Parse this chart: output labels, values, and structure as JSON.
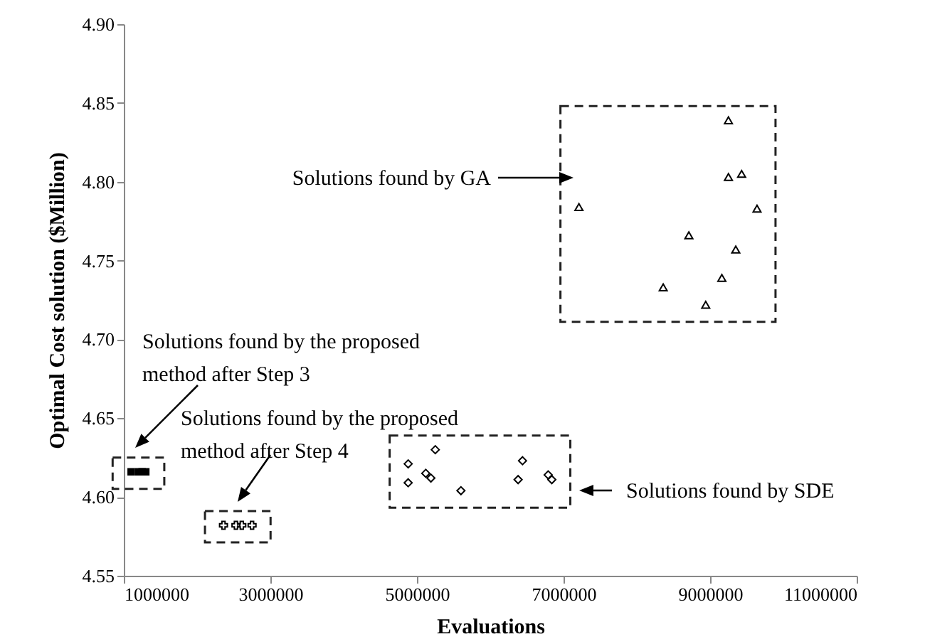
{
  "chart_data": {
    "type": "scatter",
    "xlabel": "Evaluations",
    "ylabel": "Optimal Cost solution ($Million)",
    "xlim": [
      1000000,
      11000000
    ],
    "xticks": [
      1000000,
      3000000,
      5000000,
      7000000,
      9000000,
      11000000
    ],
    "ylim": [
      4.55,
      4.9
    ],
    "yticks": [
      4.55,
      {
        "value": 4.6,
        "label": "4.60"
      },
      4.65,
      {
        "value": 4.7,
        "label": "4.70"
      },
      4.75,
      {
        "value": 4.8,
        "label": "4.80"
      },
      4.85,
      {
        "value": 4.9,
        "label": "4.90"
      }
    ],
    "grid": false,
    "series": [
      {
        "color": "#000000",
        "marker": "triangle",
        "x": [
          7210000,
          9250000,
          9250000,
          9430000,
          9640000,
          8710000,
          9350000,
          9160000,
          8360000,
          8940000
        ],
        "values": [
          4.784,
          4.839,
          4.803,
          4.805,
          4.783,
          4.766,
          4.757,
          4.739,
          4.733,
          4.722
        ]
      },
      {
        "color": "#000000",
        "marker": "diamond",
        "x": [
          5250000,
          4880000,
          5120000,
          5190000,
          4880000,
          5600000,
          6440000,
          6380000,
          6790000,
          6840000
        ],
        "values": [
          4.63,
          4.621,
          4.615,
          4.612,
          4.609,
          4.604,
          4.623,
          4.611,
          4.614,
          4.611
        ]
      },
      {
        "color": "#000000",
        "marker": "cross",
        "x": [
          2360000,
          2530000,
          2610000,
          2750000
        ],
        "values": [
          4.582,
          4.582,
          4.582,
          4.582
        ]
      },
      {
        "color": "#000000",
        "marker": "square",
        "x": [
          1100000,
          1200000,
          1250000,
          1300000
        ],
        "values": [
          4.616,
          4.616,
          4.616,
          4.616
        ]
      }
    ],
    "annotations": [
      "Solutions found by GA",
      "Solutions found by the proposed\nmethod after Step 3",
      "Solutions found by the proposed\nmethod after Step 4",
      "Solutions found by SDE"
    ]
  }
}
